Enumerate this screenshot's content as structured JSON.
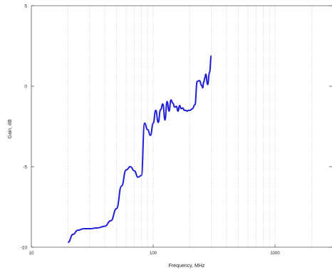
{
  "chart_data": {
    "type": "line",
    "title": "",
    "xlabel": "Frequency, MHz",
    "ylabel": "Gain, dB",
    "xscale": "log",
    "xlim": [
      10,
      300
    ],
    "ylim": [
      -10,
      5
    ],
    "x_tick_labels": [
      "10",
      "100",
      "1000"
    ],
    "x_tick_values": [
      10,
      100,
      1000
    ],
    "y_ticks": [
      -10,
      -5,
      0,
      5
    ],
    "grid": "vertical",
    "colors": {
      "line": "#1f1fd6",
      "grid": "#c8c8c8",
      "axis": "#555555"
    },
    "series": [
      {
        "x": [
          20,
          22,
          24,
          27,
          30,
          35,
          40,
          45,
          50,
          55,
          60,
          65,
          70,
          75,
          80,
          85,
          90,
          95,
          100,
          105,
          110,
          115,
          120,
          125,
          130,
          135,
          140,
          145,
          150,
          155,
          160,
          165,
          170,
          175,
          180,
          185,
          190,
          195,
          200,
          210,
          220,
          230,
          240,
          250,
          255,
          260,
          265,
          270,
          280,
          290,
          300
        ],
        "y": [
          -9.7,
          -9.2,
          -8.95,
          -8.85,
          -8.85,
          -8.8,
          -8.7,
          -8.35,
          -7.6,
          -6.2,
          -5.2,
          -5.0,
          -5.25,
          -5.65,
          -5.55,
          -2.3,
          -2.7,
          -3.05,
          -2.3,
          -1.5,
          -2.25,
          -1.45,
          -1.1,
          -2.1,
          -0.95,
          -1.55,
          -0.85,
          -1.05,
          -1.3,
          -1.25,
          -1.55,
          -1.2,
          -1.4,
          -1.35,
          -1.5,
          -1.5,
          -1.55,
          -1.5,
          -1.5,
          -1.4,
          -1.15,
          0.3,
          0.35,
          0.05,
          -0.1,
          0.25,
          0.5,
          0.75,
          0.1,
          0.85,
          1.9
        ]
      }
    ]
  }
}
